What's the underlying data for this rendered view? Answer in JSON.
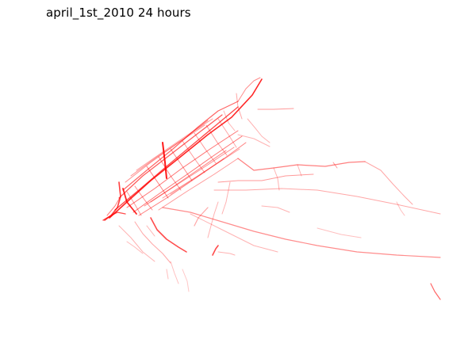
{
  "figure": {
    "title": "april_1st_2010 24 hours",
    "line_color": "#ff0000",
    "background_color": "#ffffff",
    "axes_visible": false
  },
  "map": {
    "content": "red trip route traces over a borough street network"
  }
}
